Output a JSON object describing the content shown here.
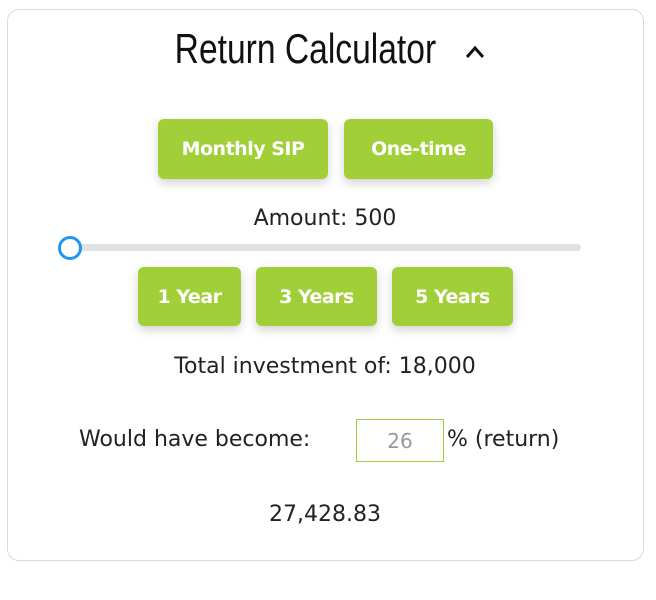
{
  "title": "Return Calculator",
  "colors": {
    "accent": "#a0cf37",
    "slider": "#2196f3"
  },
  "mode_buttons": [
    {
      "label": "Monthly SIP"
    },
    {
      "label": "One-time"
    }
  ],
  "amount": {
    "label": "Amount: 500",
    "value": 500,
    "slider_fraction": 0
  },
  "period_buttons": [
    {
      "label": "1 Year"
    },
    {
      "label": "3 Years"
    },
    {
      "label": "5 Years"
    }
  ],
  "total_investment": "Total investment of: 18,000",
  "would_have_become": "Would have become:",
  "rate_value": "26",
  "rate_suffix": "% (return)",
  "result": "27,428.83"
}
